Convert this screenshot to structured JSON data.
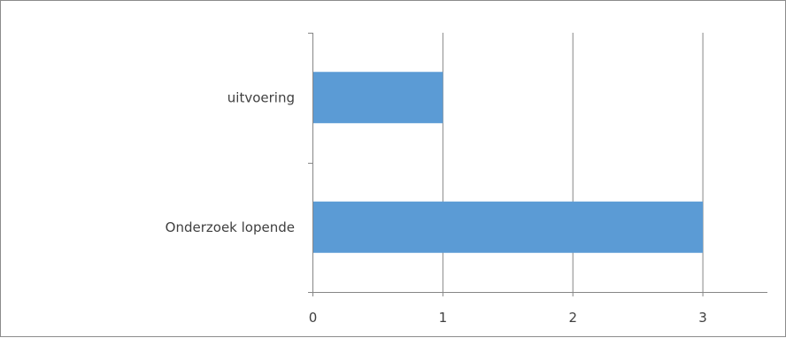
{
  "chart_data": {
    "type": "bar",
    "orientation": "horizontal",
    "categories": [
      "Onderzoek lopende",
      "uitvoering"
    ],
    "values": [
      3,
      1
    ],
    "xlim": [
      0,
      3.5
    ],
    "xticks": [
      0,
      1,
      2,
      3
    ],
    "grid": true,
    "legend": "none",
    "bar_color": "#5b9bd5",
    "grid_color": "#868686",
    "axis_color": "#868686",
    "text_color": "#404040"
  }
}
